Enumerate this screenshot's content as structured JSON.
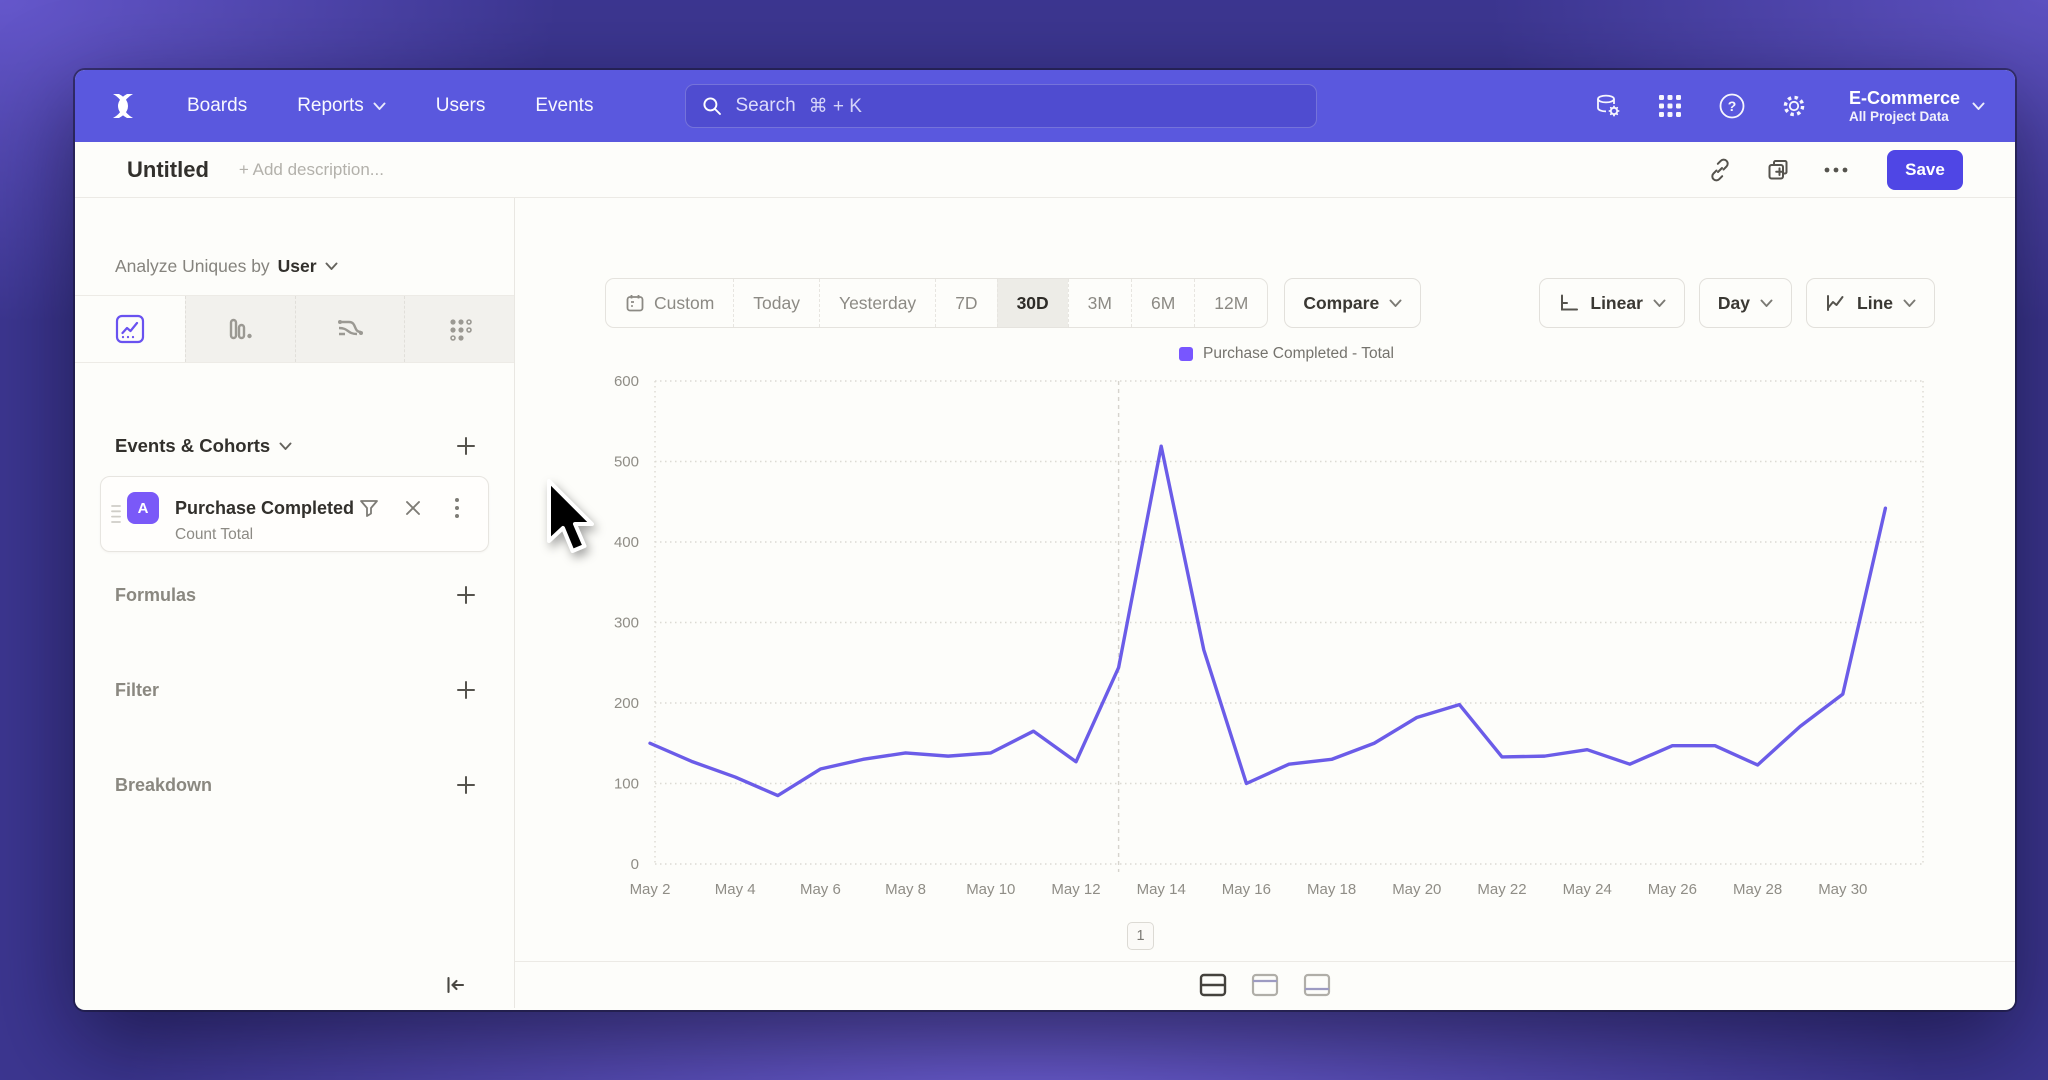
{
  "top_nav": {
    "nav_items": [
      "Boards",
      "Reports",
      "Users",
      "Events"
    ],
    "search_placeholder": "Search",
    "search_shortcut": "⌘ + K",
    "project_name": "E-Commerce",
    "project_scope": "All Project Data"
  },
  "report_header": {
    "title": "Untitled",
    "description_placeholder": "+ Add description...",
    "save_label": "Save"
  },
  "sidebar": {
    "analyze_prefix": "Analyze Uniques by",
    "analyze_value": "User",
    "events_section_title": "Events & Cohorts",
    "event_card": {
      "badge": "A",
      "title": "Purchase Completed",
      "metric": "Count Total"
    },
    "sections": [
      "Formulas",
      "Filter",
      "Breakdown"
    ]
  },
  "toolbar": {
    "date_ranges": [
      "Custom",
      "Today",
      "Yesterday",
      "7D",
      "30D",
      "3M",
      "6M",
      "12M"
    ],
    "selected_range": "30D",
    "compare_label": "Compare",
    "scale_label": "Linear",
    "granularity_label": "Day",
    "chart_type_label": "Line"
  },
  "chart_data": {
    "type": "line",
    "title": "",
    "categories": [
      "May 2",
      "May 3",
      "May 4",
      "May 5",
      "May 6",
      "May 7",
      "May 8",
      "May 9",
      "May 10",
      "May 11",
      "May 12",
      "May 13",
      "May 14",
      "May 15",
      "May 16",
      "May 17",
      "May 18",
      "May 19",
      "May 20",
      "May 21",
      "May 22",
      "May 23",
      "May 24",
      "May 25",
      "May 26",
      "May 27",
      "May 28",
      "May 29",
      "May 30",
      "May 31"
    ],
    "series": [
      {
        "name": "Purchase Completed - Total",
        "color": "#6b5ce8",
        "values": [
          150,
          127,
          108,
          85,
          118,
          130,
          138,
          134,
          138,
          165,
          127,
          244,
          519,
          266,
          100,
          124,
          130,
          150,
          182,
          198,
          133,
          134,
          142,
          124,
          147,
          147,
          123,
          171,
          211,
          442
        ]
      }
    ],
    "ylim": [
      0,
      600
    ],
    "yticks": [
      0,
      100,
      200,
      300,
      400,
      500,
      600
    ],
    "x_tick_every": 2,
    "grid": "horizontal-dotted",
    "legend_position": "top-center",
    "annotation_line_x": "May 13"
  },
  "pagination": {
    "page": "1"
  },
  "colors": {
    "header": "#5a58de",
    "accent": "#4f46e5",
    "line": "#6b5ce8",
    "legend_swatch": "#7856ff",
    "event_badge": "#7a59f8"
  },
  "icons": {
    "top_right": [
      "data-management",
      "apps-grid",
      "help",
      "settings-gear"
    ],
    "report_actions": [
      "link",
      "duplicate",
      "more-options"
    ],
    "chart_tabs": [
      "insights",
      "bar",
      "flow",
      "retention"
    ],
    "footer_layouts": [
      "split-horizontal",
      "panel-top",
      "panel-bottom"
    ]
  }
}
